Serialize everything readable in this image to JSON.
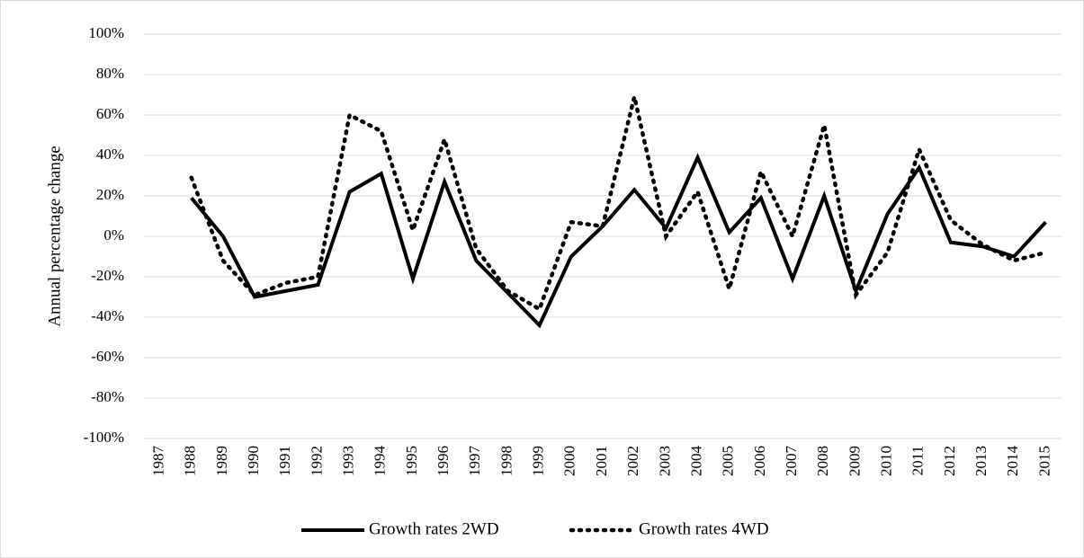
{
  "chart_data": {
    "type": "line",
    "y_label": "Annual percentage change",
    "categories": [
      "1987",
      "1988",
      "1989",
      "1990",
      "1991",
      "1992",
      "1993",
      "1994",
      "1995",
      "1996",
      "1997",
      "1998",
      "1999",
      "2000",
      "2001",
      "2002",
      "2003",
      "2004",
      "2005",
      "2006",
      "2007",
      "2008",
      "2009",
      "2010",
      "2011",
      "2012",
      "2013",
      "2014",
      "2015"
    ],
    "series": [
      {
        "name": "Growth rates 2WD",
        "color": "#000000",
        "dash": "solid",
        "values": [
          null,
          19,
          0,
          -30,
          -27,
          -24,
          22,
          31,
          -21,
          27,
          -12,
          -28,
          -44,
          -10,
          5,
          23,
          4,
          39,
          2,
          19,
          -21,
          20,
          -27,
          11,
          34,
          -3,
          -5,
          -10,
          7
        ]
      },
      {
        "name": "Growth rates 4WD",
        "color": "#000000",
        "dash": "dotted",
        "values": [
          null,
          29,
          -12,
          -29,
          -23,
          -20,
          60,
          52,
          3,
          48,
          -6,
          -27,
          -36,
          7,
          5,
          69,
          0,
          22,
          -26,
          32,
          0,
          55,
          -29,
          -8,
          43,
          8,
          -4,
          -12,
          -8
        ]
      }
    ],
    "ylim": [
      -100,
      100
    ],
    "yticks": [
      {
        "value": -100,
        "label": "-100%"
      },
      {
        "value": -80,
        "label": "-80%"
      },
      {
        "value": -60,
        "label": "-60%"
      },
      {
        "value": -40,
        "label": "-40%"
      },
      {
        "value": -20,
        "label": "-20%"
      },
      {
        "value": 0,
        "label": "0%"
      },
      {
        "value": 20,
        "label": "20%"
      },
      {
        "value": 40,
        "label": "40%"
      },
      {
        "value": 60,
        "label": "60%"
      },
      {
        "value": 80,
        "label": "80%"
      },
      {
        "value": 100,
        "label": "100%"
      }
    ],
    "grid": true,
    "legend": "bottom"
  }
}
